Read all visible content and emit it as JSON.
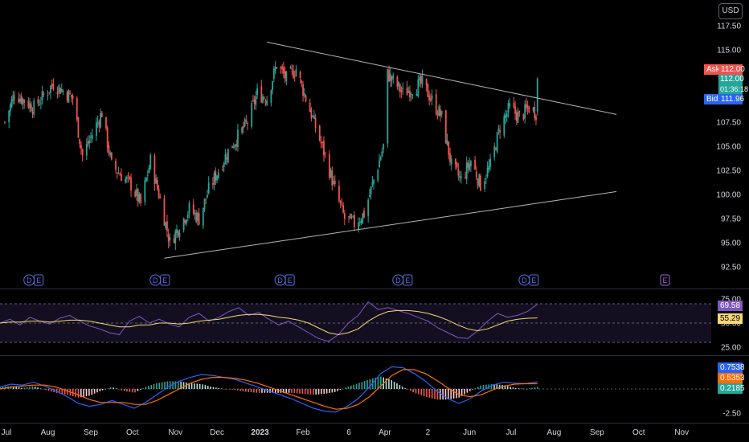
{
  "currency": "USD",
  "colors": {
    "up": "#26a69a",
    "down": "#ef5350",
    "bg": "#000000",
    "text": "#d1d4dc",
    "grid": "#2a2e39",
    "trend": "#b2b5be",
    "rsi": "#7e57c2",
    "rsi_ma": "#f7d774",
    "macd": "#2962ff",
    "signal": "#ff6d00",
    "event": "#5b6ee1",
    "earn": "#9c6ade"
  },
  "price_axis": {
    "ticks": [
      "117.50",
      "115.00",
      "112.50",
      "110.00",
      "107.50",
      "105.00",
      "102.50",
      "100.00",
      "97.50",
      "95.00",
      "92.50"
    ]
  },
  "rsi_axis": {
    "ticks": [
      "75.00",
      "50.00",
      "25.00"
    ]
  },
  "macd_axis": {
    "ticks": [
      "-2.50"
    ]
  },
  "time_axis": [
    "Jul",
    "Aug",
    "Sep",
    "Oct",
    "Nov",
    "Dec",
    "2023",
    "Feb",
    "6",
    "Apr",
    "2",
    "Jun",
    "Jul",
    "Aug",
    "Sep",
    "Oct",
    "Nov"
  ],
  "quote": {
    "ask_label": "Ask",
    "ask": "112.00",
    "last": "112.00",
    "countdown": "01:36:18",
    "bid_label": "Bid",
    "bid": "111.96"
  },
  "rsi_badges": {
    "rsi": "69.58",
    "ma": "55.29"
  },
  "macd_badges": {
    "macd": "0.7538",
    "signal": "0.5353",
    "hist": "0.2185"
  },
  "events": [
    {
      "date": "2022-07-22",
      "markers": [
        "D",
        "E"
      ]
    },
    {
      "date": "2022-10-21",
      "markers": [
        "D",
        "E"
      ]
    },
    {
      "date": "2023-01-19",
      "markers": [
        "D",
        "E"
      ]
    },
    {
      "date": "2023-04-14",
      "markers": [
        "D",
        "E"
      ]
    },
    {
      "date": "2023-07-14",
      "markers": [
        "D",
        "E"
      ]
    },
    {
      "date": "2023-10-20",
      "markers": [
        "E"
      ]
    }
  ],
  "chart_data": [
    {
      "type": "candlestick",
      "xlabel": "",
      "ylabel": "",
      "ylim": [
        92.5,
        117.5
      ],
      "x_range": [
        "2022-07-01",
        "2023-11-30"
      ],
      "close_anchors": [
        {
          "date": "2022-07-01",
          "close": 107.5
        },
        {
          "date": "2022-07-08",
          "close": 110.5
        },
        {
          "date": "2022-07-22",
          "close": 109.0
        },
        {
          "date": "2022-08-05",
          "close": 111.5
        },
        {
          "date": "2022-08-19",
          "close": 110.0
        },
        {
          "date": "2022-08-26",
          "close": 104.0
        },
        {
          "date": "2022-09-09",
          "close": 108.5
        },
        {
          "date": "2022-09-16",
          "close": 103.0
        },
        {
          "date": "2022-09-30",
          "close": 101.0
        },
        {
          "date": "2022-10-07",
          "close": 99.0
        },
        {
          "date": "2022-10-14",
          "close": 103.5
        },
        {
          "date": "2022-10-21",
          "close": 99.5
        },
        {
          "date": "2022-10-28",
          "close": 95.0
        },
        {
          "date": "2022-11-11",
          "close": 98.5
        },
        {
          "date": "2022-11-18",
          "close": 97.5
        },
        {
          "date": "2022-11-25",
          "close": 100.5
        },
        {
          "date": "2022-12-09",
          "close": 104.5
        },
        {
          "date": "2022-12-23",
          "close": 107.5
        },
        {
          "date": "2022-12-30",
          "close": 110.5
        },
        {
          "date": "2023-01-06",
          "close": 110.0
        },
        {
          "date": "2023-01-13",
          "close": 113.5
        },
        {
          "date": "2023-01-20",
          "close": 112.0
        },
        {
          "date": "2023-01-27",
          "close": 113.0
        },
        {
          "date": "2023-02-03",
          "close": 110.0
        },
        {
          "date": "2023-02-10",
          "close": 107.0
        },
        {
          "date": "2023-02-17",
          "close": 104.0
        },
        {
          "date": "2023-02-24",
          "close": 100.5
        },
        {
          "date": "2023-03-03",
          "close": 97.5
        },
        {
          "date": "2023-03-10",
          "close": 97.0
        },
        {
          "date": "2023-03-17",
          "close": 98.0
        },
        {
          "date": "2023-03-24",
          "close": 101.5
        },
        {
          "date": "2023-03-31",
          "close": 105.0
        },
        {
          "date": "2023-04-03",
          "close": 112.5
        },
        {
          "date": "2023-04-14",
          "close": 110.5
        },
        {
          "date": "2023-04-28",
          "close": 111.5
        },
        {
          "date": "2023-05-12",
          "close": 108.0
        },
        {
          "date": "2023-05-19",
          "close": 103.0
        },
        {
          "date": "2023-05-26",
          "close": 101.5
        },
        {
          "date": "2023-06-02",
          "close": 103.5
        },
        {
          "date": "2023-06-09",
          "close": 101.0
        },
        {
          "date": "2023-06-16",
          "close": 103.0
        },
        {
          "date": "2023-06-23",
          "close": 107.0
        },
        {
          "date": "2023-06-30",
          "close": 109.0
        },
        {
          "date": "2023-07-07",
          "close": 108.0
        },
        {
          "date": "2023-07-14",
          "close": 109.0
        },
        {
          "date": "2023-07-19",
          "close": 108.5
        },
        {
          "date": "2023-07-20",
          "close": 112.0
        }
      ],
      "trendlines": [
        {
          "from": {
            "date": "2023-01-06",
            "price": 115.8
          },
          "to": {
            "date": "2023-09-15",
            "price": 108.3
          }
        },
        {
          "from": {
            "date": "2022-10-24",
            "price": 93.4
          },
          "to": {
            "date": "2023-09-15",
            "price": 100.3
          }
        }
      ]
    },
    {
      "type": "line",
      "ylim": [
        25,
        75
      ],
      "series": [
        {
          "values": [
            50,
            54,
            48,
            56,
            52,
            49,
            55,
            58,
            52,
            47,
            44,
            40,
            38,
            52,
            57,
            50,
            54,
            49,
            46,
            56,
            60,
            52,
            56,
            62,
            66,
            58,
            61,
            54,
            48,
            52,
            46,
            40,
            34,
            31,
            38,
            50,
            58,
            72,
            64,
            66,
            63,
            60,
            56,
            52,
            45,
            40,
            35,
            34,
            42,
            52,
            60,
            56,
            58,
            62,
            69.6
          ]
        },
        {
          "values": [
            50,
            51,
            51,
            52,
            52,
            51,
            52,
            53,
            53,
            52,
            50,
            48,
            46,
            46,
            48,
            48,
            50,
            50,
            49,
            50,
            52,
            53,
            54,
            56,
            58,
            59,
            59,
            58,
            56,
            55,
            53,
            50,
            45,
            40,
            38,
            40,
            44,
            52,
            58,
            62,
            63,
            63,
            62,
            60,
            57,
            53,
            48,
            44,
            42,
            44,
            48,
            52,
            54,
            55,
            55.3
          ]
        }
      ]
    },
    {
      "type": "line",
      "series": [
        {
          "values": [
            0.2,
            0.5,
            0.4,
            0.7,
            0.3,
            -0.2,
            -0.8,
            -1.5,
            -1.8,
            -1.6,
            -1.2,
            -1.6,
            -2.0,
            -1.4,
            -0.6,
            0.2,
            0.8,
            1.2,
            1.5,
            1.4,
            1.2,
            1.0,
            0.6,
            0.2,
            -0.2,
            -0.6,
            -1.0,
            -1.5,
            -2.0,
            -2.3,
            -2.4,
            -1.8,
            -1.0,
            0.2,
            1.6,
            2.3,
            2.2,
            1.6,
            0.8,
            -0.2,
            -1.0,
            -1.5,
            -1.0,
            -0.2,
            0.4,
            0.7,
            0.6,
            0.55,
            0.75
          ]
        },
        {
          "values": [
            0.0,
            0.2,
            0.3,
            0.4,
            0.4,
            0.2,
            -0.2,
            -0.6,
            -1.1,
            -1.4,
            -1.4,
            -1.4,
            -1.6,
            -1.6,
            -1.2,
            -0.6,
            0.0,
            0.6,
            1.0,
            1.2,
            1.2,
            1.1,
            0.9,
            0.6,
            0.2,
            -0.2,
            -0.6,
            -1.0,
            -1.4,
            -1.8,
            -2.1,
            -2.0,
            -1.6,
            -0.8,
            0.3,
            1.4,
            2.0,
            2.0,
            1.6,
            0.9,
            0.1,
            -0.6,
            -0.8,
            -0.6,
            -0.1,
            0.3,
            0.5,
            0.55,
            0.54
          ]
        },
        {
          "values": [
            0.2,
            0.3,
            0.1,
            0.3,
            -0.1,
            -0.4,
            -0.6,
            -0.9,
            -0.7,
            -0.2,
            0.2,
            -0.2,
            -0.4,
            0.2,
            0.6,
            0.8,
            0.8,
            0.6,
            0.5,
            0.2,
            0.0,
            -0.1,
            -0.3,
            -0.4,
            -0.4,
            -0.4,
            -0.4,
            -0.5,
            -0.6,
            -0.5,
            -0.3,
            0.2,
            0.6,
            1.0,
            1.3,
            0.9,
            0.2,
            -0.4,
            -0.8,
            -1.1,
            -1.1,
            -0.9,
            -0.2,
            0.4,
            0.5,
            0.4,
            0.1,
            0.0,
            0.22
          ]
        }
      ]
    }
  ]
}
